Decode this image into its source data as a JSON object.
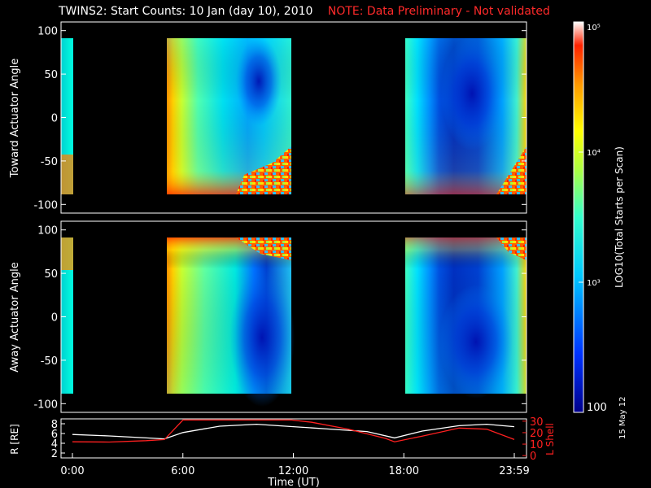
{
  "figure": {
    "title": "TWINS2: Start Counts: 10 Jan (day  10), 2010",
    "warning": "NOTE: Data Preliminary - Not validated",
    "date_stamp": "15 May 12"
  },
  "chart_data": [
    {
      "type": "heatmap",
      "name": "toward",
      "ylabel": "Toward Actuator Angle",
      "ylim": [
        -110,
        110
      ],
      "yticks": [
        100,
        50,
        0,
        -50,
        -100
      ],
      "xlim": [
        0,
        24
      ],
      "data_windows_hours": [
        [
          0,
          0.1
        ],
        [
          5.3,
          11.9
        ],
        [
          17.6,
          24
        ]
      ],
      "colormap": "rainbow"
    },
    {
      "type": "heatmap",
      "name": "away",
      "ylabel": "Away Actuator Angle",
      "ylim": [
        -110,
        110
      ],
      "yticks": [
        100,
        50,
        0,
        -50,
        -100
      ],
      "xlim": [
        0,
        24
      ],
      "data_windows_hours": [
        [
          0,
          0.1
        ],
        [
          5.3,
          11.9
        ],
        [
          17.6,
          24
        ]
      ],
      "colormap": "rainbow"
    },
    {
      "type": "line",
      "name": "ephemeris",
      "xlabel": "Time (UT)",
      "xticks": [
        "0:00",
        "6:00",
        "12:00",
        "18:00",
        "23:59"
      ],
      "ylabel_left": "R [RE]",
      "ylabel_right": "L Shell",
      "left_yticks": [
        8,
        6,
        4,
        2
      ],
      "right_yticks": [
        30,
        20,
        10,
        0
      ],
      "series": [
        {
          "axis": "left",
          "color": "#ffffff",
          "x": [
            0,
            2,
            4,
            5,
            6,
            8,
            10,
            12,
            14,
            16,
            17.5,
            19,
            21,
            22.5,
            24
          ],
          "values": [
            5.8,
            5.5,
            5.1,
            4.9,
            6.2,
            7.5,
            7.9,
            7.4,
            6.9,
            6.4,
            5.1,
            6.5,
            7.6,
            7.9,
            7.4
          ]
        },
        {
          "axis": "right",
          "color": "#ff2020",
          "x": [
            0,
            2,
            4,
            5,
            6,
            11.9,
            13,
            15,
            17,
            17.5,
            19,
            21,
            22.5,
            24
          ],
          "values": [
            12,
            11.8,
            13,
            14,
            31,
            31,
            29,
            23,
            15,
            12,
            17,
            24,
            23,
            14
          ]
        }
      ]
    },
    {
      "type": "colorbar",
      "label": "LOG10(Total Starts per Scan)",
      "scale": "log",
      "range": [
        100,
        100000
      ],
      "tick_labels": [
        "10⁵",
        "10⁴",
        "10³",
        "100"
      ]
    }
  ]
}
